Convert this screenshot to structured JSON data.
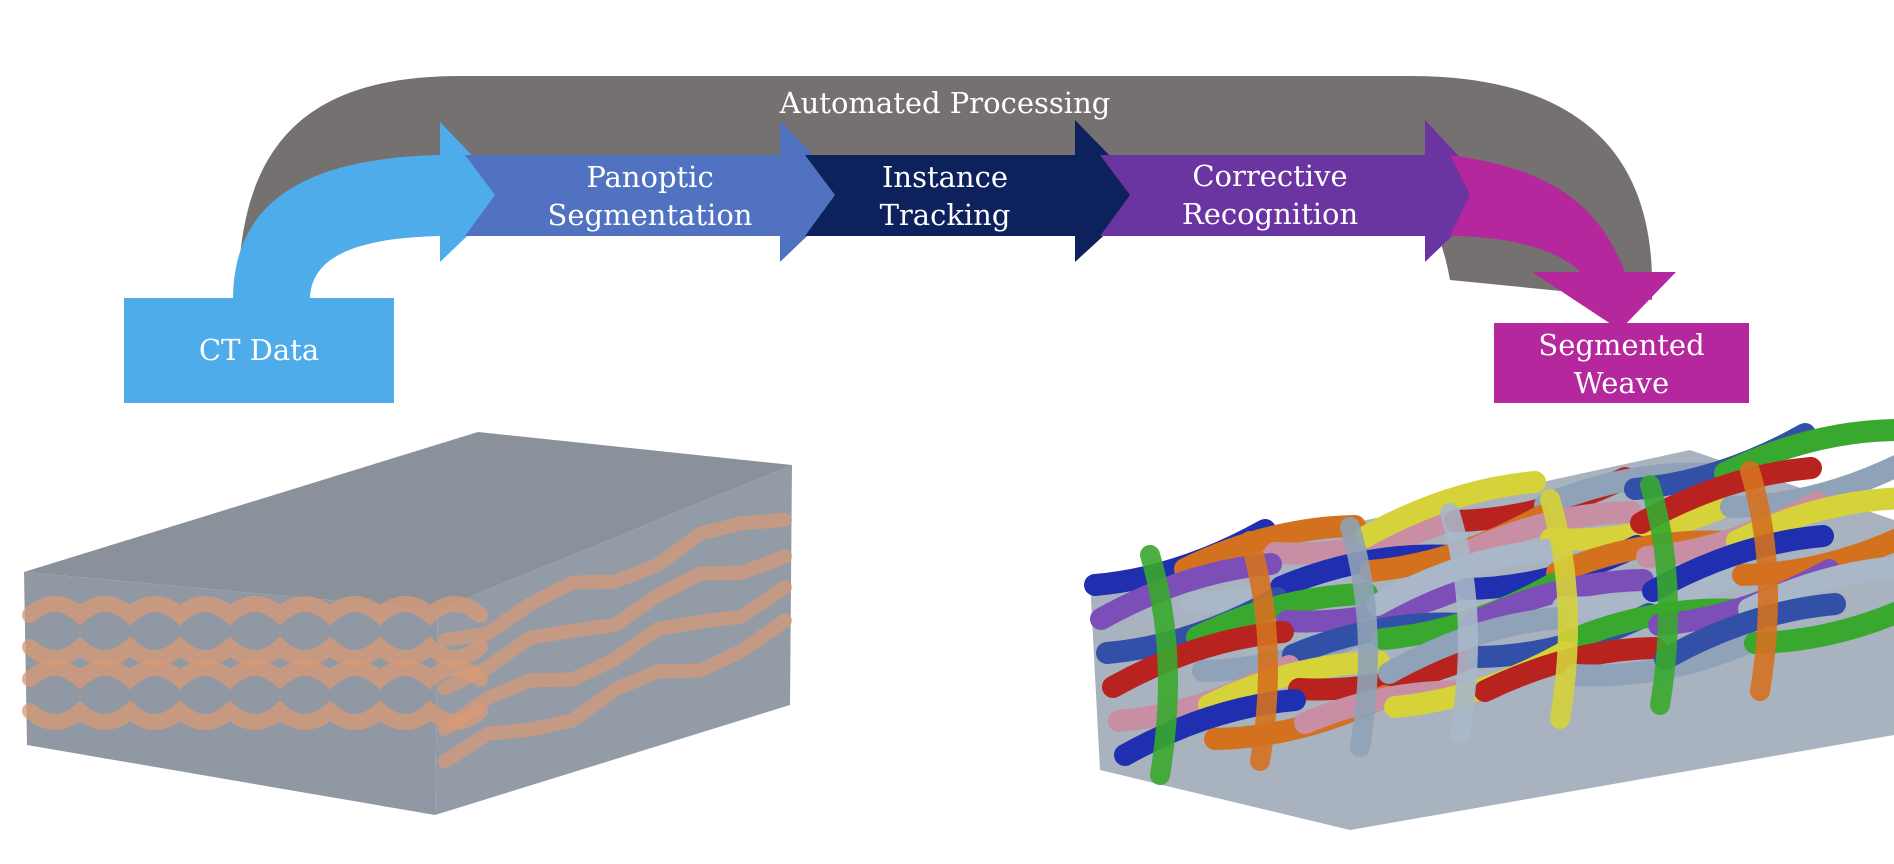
{
  "arc": {
    "label": "Automated Processing"
  },
  "steps": [
    {
      "id": "ct-data",
      "lines": [
        "CT Data"
      ],
      "color": "#4eaceb"
    },
    {
      "id": "panoptic-segmentation",
      "lines": [
        "Panoptic",
        "Segmentation"
      ],
      "color": "#5072c0"
    },
    {
      "id": "instance-tracking",
      "lines": [
        "Instance",
        "Tracking"
      ],
      "color": "#0d215c"
    },
    {
      "id": "corrective-recognition",
      "lines": [
        "Corrective",
        "Recognition"
      ],
      "color": "#6a34a1"
    },
    {
      "id": "segmented-weave",
      "lines": [
        "Segmented",
        "Weave"
      ],
      "color": "#b5279c"
    }
  ],
  "colors": {
    "arc": "#757170",
    "block_top": "#8a919a",
    "block_side": "#9099a3",
    "fiber": "#d99a76",
    "weave_palette": [
      "#1f2fb0",
      "#38a82e",
      "#b8231f",
      "#d4711f",
      "#7c4fb8",
      "#8fa2b7",
      "#c88fa4",
      "#a9b7c9",
      "#3350a8",
      "#d5d23a"
    ]
  }
}
